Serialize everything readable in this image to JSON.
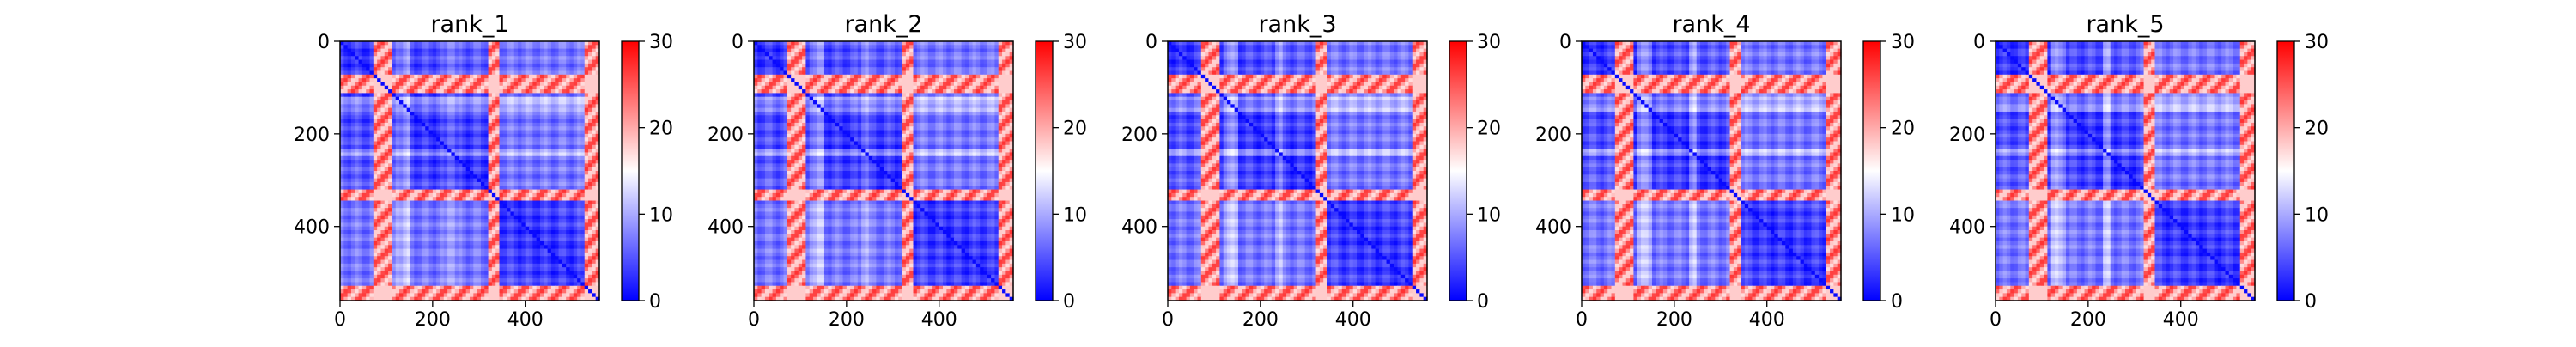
{
  "figure": {
    "colormap": "bwr",
    "colormap_stops": [
      "#0000ff",
      "#ffffff",
      "#ff0000"
    ]
  },
  "chart_data": [
    {
      "type": "heatmap",
      "title": "rank_1",
      "x_ticks": [
        0,
        200,
        400
      ],
      "y_ticks": [
        0,
        200,
        400
      ],
      "x_range": [
        0,
        560
      ],
      "y_range": [
        0,
        560
      ],
      "colorbar": {
        "range": [
          0,
          30
        ],
        "ticks": [
          0,
          10,
          20,
          30
        ]
      },
      "structure": {
        "high_bands": [
          [
            70,
            110
          ],
          [
            320,
            345
          ],
          [
            530,
            560
          ]
        ],
        "light_bands": [
          [
            80,
            100
          ],
          [
            120,
            150
          ],
          [
            230,
            250
          ]
        ],
        "domain_break": 330
      }
    },
    {
      "type": "heatmap",
      "title": "rank_2",
      "x_ticks": [
        0,
        200,
        400
      ],
      "y_ticks": [
        0,
        200,
        400
      ],
      "x_range": [
        0,
        560
      ],
      "y_range": [
        0,
        560
      ],
      "colorbar": {
        "range": [
          0,
          30
        ],
        "ticks": [
          0,
          10,
          20,
          30
        ]
      },
      "structure": {
        "high_bands": [
          [
            70,
            110
          ],
          [
            320,
            345
          ],
          [
            530,
            560
          ]
        ],
        "light_bands": [
          [
            80,
            100
          ],
          [
            120,
            150
          ],
          [
            230,
            250
          ]
        ],
        "domain_break": 330
      }
    },
    {
      "type": "heatmap",
      "title": "rank_3",
      "x_ticks": [
        0,
        200,
        400
      ],
      "y_ticks": [
        0,
        200,
        400
      ],
      "x_range": [
        0,
        560
      ],
      "y_range": [
        0,
        560
      ],
      "colorbar": {
        "range": [
          0,
          30
        ],
        "ticks": [
          0,
          10,
          20,
          30
        ]
      },
      "structure": {
        "high_bands": [
          [
            70,
            110
          ],
          [
            320,
            345
          ],
          [
            530,
            560
          ]
        ],
        "light_bands": [
          [
            80,
            100
          ],
          [
            120,
            150
          ],
          [
            230,
            250
          ]
        ],
        "domain_break": 330
      }
    },
    {
      "type": "heatmap",
      "title": "rank_4",
      "x_ticks": [
        0,
        200,
        400
      ],
      "y_ticks": [
        0,
        200,
        400
      ],
      "x_range": [
        0,
        560
      ],
      "y_range": [
        0,
        560
      ],
      "colorbar": {
        "range": [
          0,
          30
        ],
        "ticks": [
          0,
          10,
          20,
          30
        ]
      },
      "structure": {
        "high_bands": [
          [
            70,
            110
          ],
          [
            320,
            345
          ],
          [
            530,
            560
          ]
        ],
        "light_bands": [
          [
            80,
            100
          ],
          [
            120,
            150
          ],
          [
            230,
            250
          ]
        ],
        "domain_break": 330
      }
    },
    {
      "type": "heatmap",
      "title": "rank_5",
      "x_ticks": [
        0,
        200,
        400
      ],
      "y_ticks": [
        0,
        200,
        400
      ],
      "x_range": [
        0,
        560
      ],
      "y_range": [
        0,
        560
      ],
      "colorbar": {
        "range": [
          0,
          30
        ],
        "ticks": [
          0,
          10,
          20,
          30
        ]
      },
      "structure": {
        "high_bands": [
          [
            70,
            110
          ],
          [
            320,
            345
          ],
          [
            530,
            560
          ]
        ],
        "light_bands": [
          [
            80,
            100
          ],
          [
            120,
            150
          ],
          [
            230,
            250
          ]
        ],
        "domain_break": 330
      }
    }
  ]
}
